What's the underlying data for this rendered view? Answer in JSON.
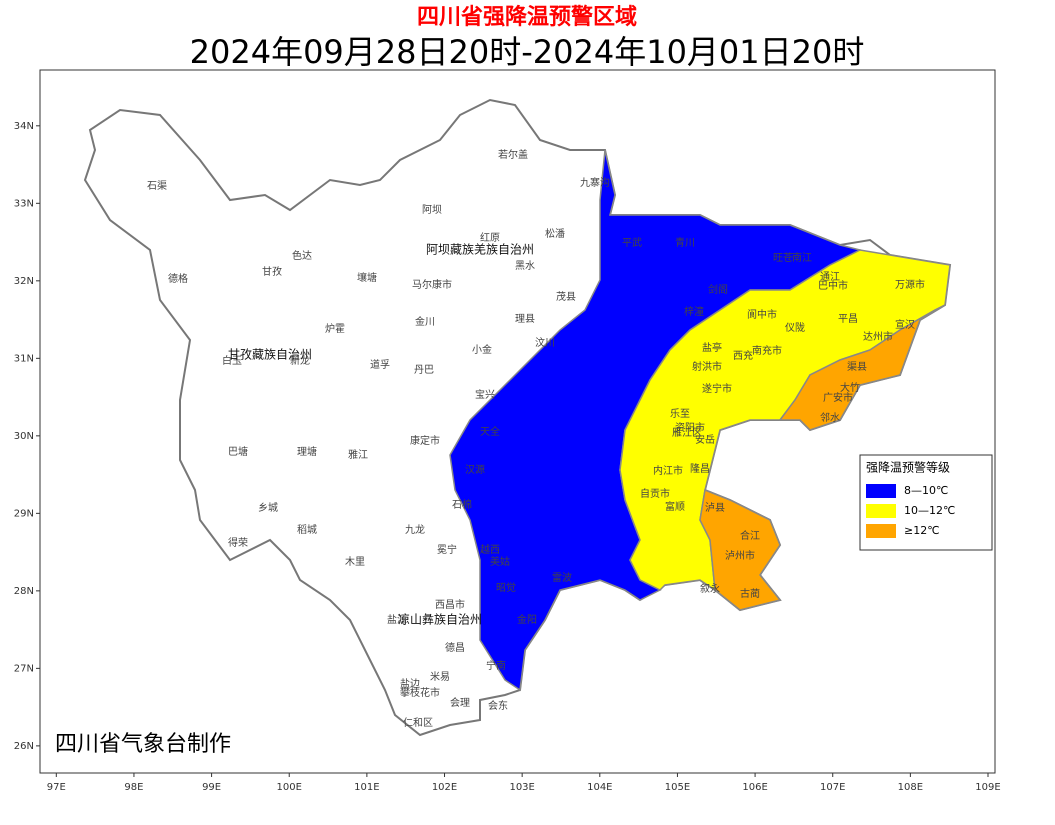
{
  "map": {
    "title": "四川省强降温预警区域",
    "subtitle": "2024年09月28日20时-2024年10月01日20时",
    "credit": "四川省气象台制作",
    "xlim": [
      96.79,
      109.09
    ],
    "ylim": [
      25.65,
      34.72
    ],
    "xticks": [
      {
        "value": 97,
        "label": "97E"
      },
      {
        "value": 98,
        "label": "98E"
      },
      {
        "value": 99,
        "label": "99E"
      },
      {
        "value": 100,
        "label": "100E"
      },
      {
        "value": 101,
        "label": "101E"
      },
      {
        "value": 102,
        "label": "102E"
      },
      {
        "value": 103,
        "label": "103E"
      },
      {
        "value": 104,
        "label": "104E"
      },
      {
        "value": 105,
        "label": "105E"
      },
      {
        "value": 106,
        "label": "106E"
      },
      {
        "value": 107,
        "label": "107E"
      },
      {
        "value": 108,
        "label": "108E"
      },
      {
        "value": 109,
        "label": "109E"
      }
    ],
    "yticks": [
      {
        "value": 26,
        "label": "26N"
      },
      {
        "value": 27,
        "label": "27N"
      },
      {
        "value": 28,
        "label": "28N"
      },
      {
        "value": 29,
        "label": "29N"
      },
      {
        "value": 30,
        "label": "30N"
      },
      {
        "value": 31,
        "label": "31N"
      },
      {
        "value": 32,
        "label": "32N"
      },
      {
        "value": 33,
        "label": "33N"
      },
      {
        "value": 34,
        "label": "34N"
      }
    ],
    "legend": {
      "title": "强降温预警等级",
      "items": [
        {
          "name": "8—10℃",
          "color": "#0000ff"
        },
        {
          "name": "10—12℃",
          "color": "#ffff00"
        },
        {
          "name": "≥12℃",
          "color": "#ffa500"
        }
      ]
    },
    "places": [
      "石渠",
      "德格",
      "甘孜",
      "色达",
      "炉霍",
      "白玉",
      "新龙",
      "甘孜藏族自治州",
      "道孚",
      "巴塘",
      "理塘",
      "雅江",
      "康定市",
      "乡城",
      "稻城",
      "得荣",
      "木里",
      "九龙",
      "冕宁",
      "若尔盖",
      "九寨沟",
      "阿坝",
      "红原",
      "松潘",
      "阿坝藏族羌族自治州",
      "壤塘",
      "马尔康市",
      "黑水",
      "茂县",
      "金川",
      "理县",
      "小金",
      "汶川",
      "丹巴",
      "宝兴",
      "天全",
      "平武",
      "青川",
      "旺苍",
      "通江",
      "巴中市",
      "万源市",
      "南江",
      "平昌",
      "宣汉",
      "达州市",
      "阆中市",
      "仪陇",
      "南充市",
      "渠县",
      "大竹",
      "广安市",
      "邻水",
      "遂宁市",
      "资阳市",
      "安岳",
      "内江市",
      "自贡市",
      "泸州市",
      "古蔺",
      "叙永",
      "泸县",
      "西昌市",
      "凉山彝族自治州",
      "盐源",
      "德昌",
      "宁南",
      "米易",
      "盐边",
      "攀枝花市",
      "仁和区",
      "会理",
      "会东",
      "西充",
      "剑阁",
      "梓潼",
      "盐亭",
      "射洪市",
      "乐至",
      "雁江区",
      "隆昌",
      "富顺",
      "合江",
      "汉源",
      "石棉",
      "昭觉",
      "美姑",
      "越西",
      "金阳",
      "雷波"
    ]
  }
}
